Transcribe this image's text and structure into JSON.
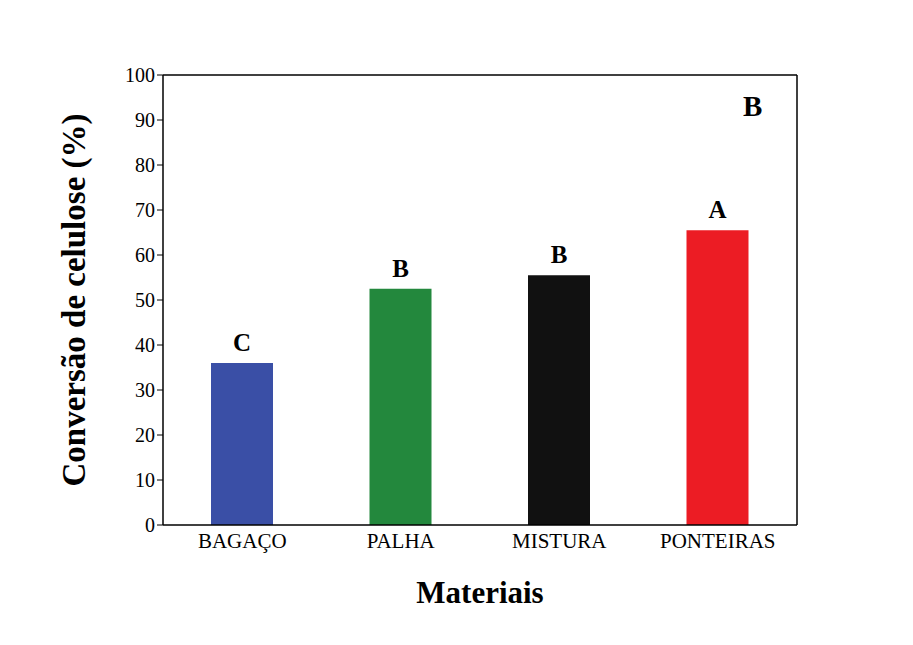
{
  "chart_data": {
    "type": "bar",
    "panel_label": "B",
    "xlabel": "Materiais",
    "ylabel": "Conversão de celulose (%)",
    "categories": [
      "BAGAÇO",
      "PALHA",
      "MISTURA",
      "PONTEIRAS"
    ],
    "values": [
      36,
      52.5,
      55.5,
      65.5
    ],
    "colors": [
      "#3a4fa6",
      "#23883d",
      "#111111",
      "#ec1c24"
    ],
    "annotations": [
      "C",
      "B",
      "B",
      "A"
    ],
    "ylim": [
      0,
      100
    ],
    "yticks": [
      0,
      10,
      20,
      30,
      40,
      50,
      60,
      70,
      80,
      90,
      100
    ],
    "grid": false
  }
}
